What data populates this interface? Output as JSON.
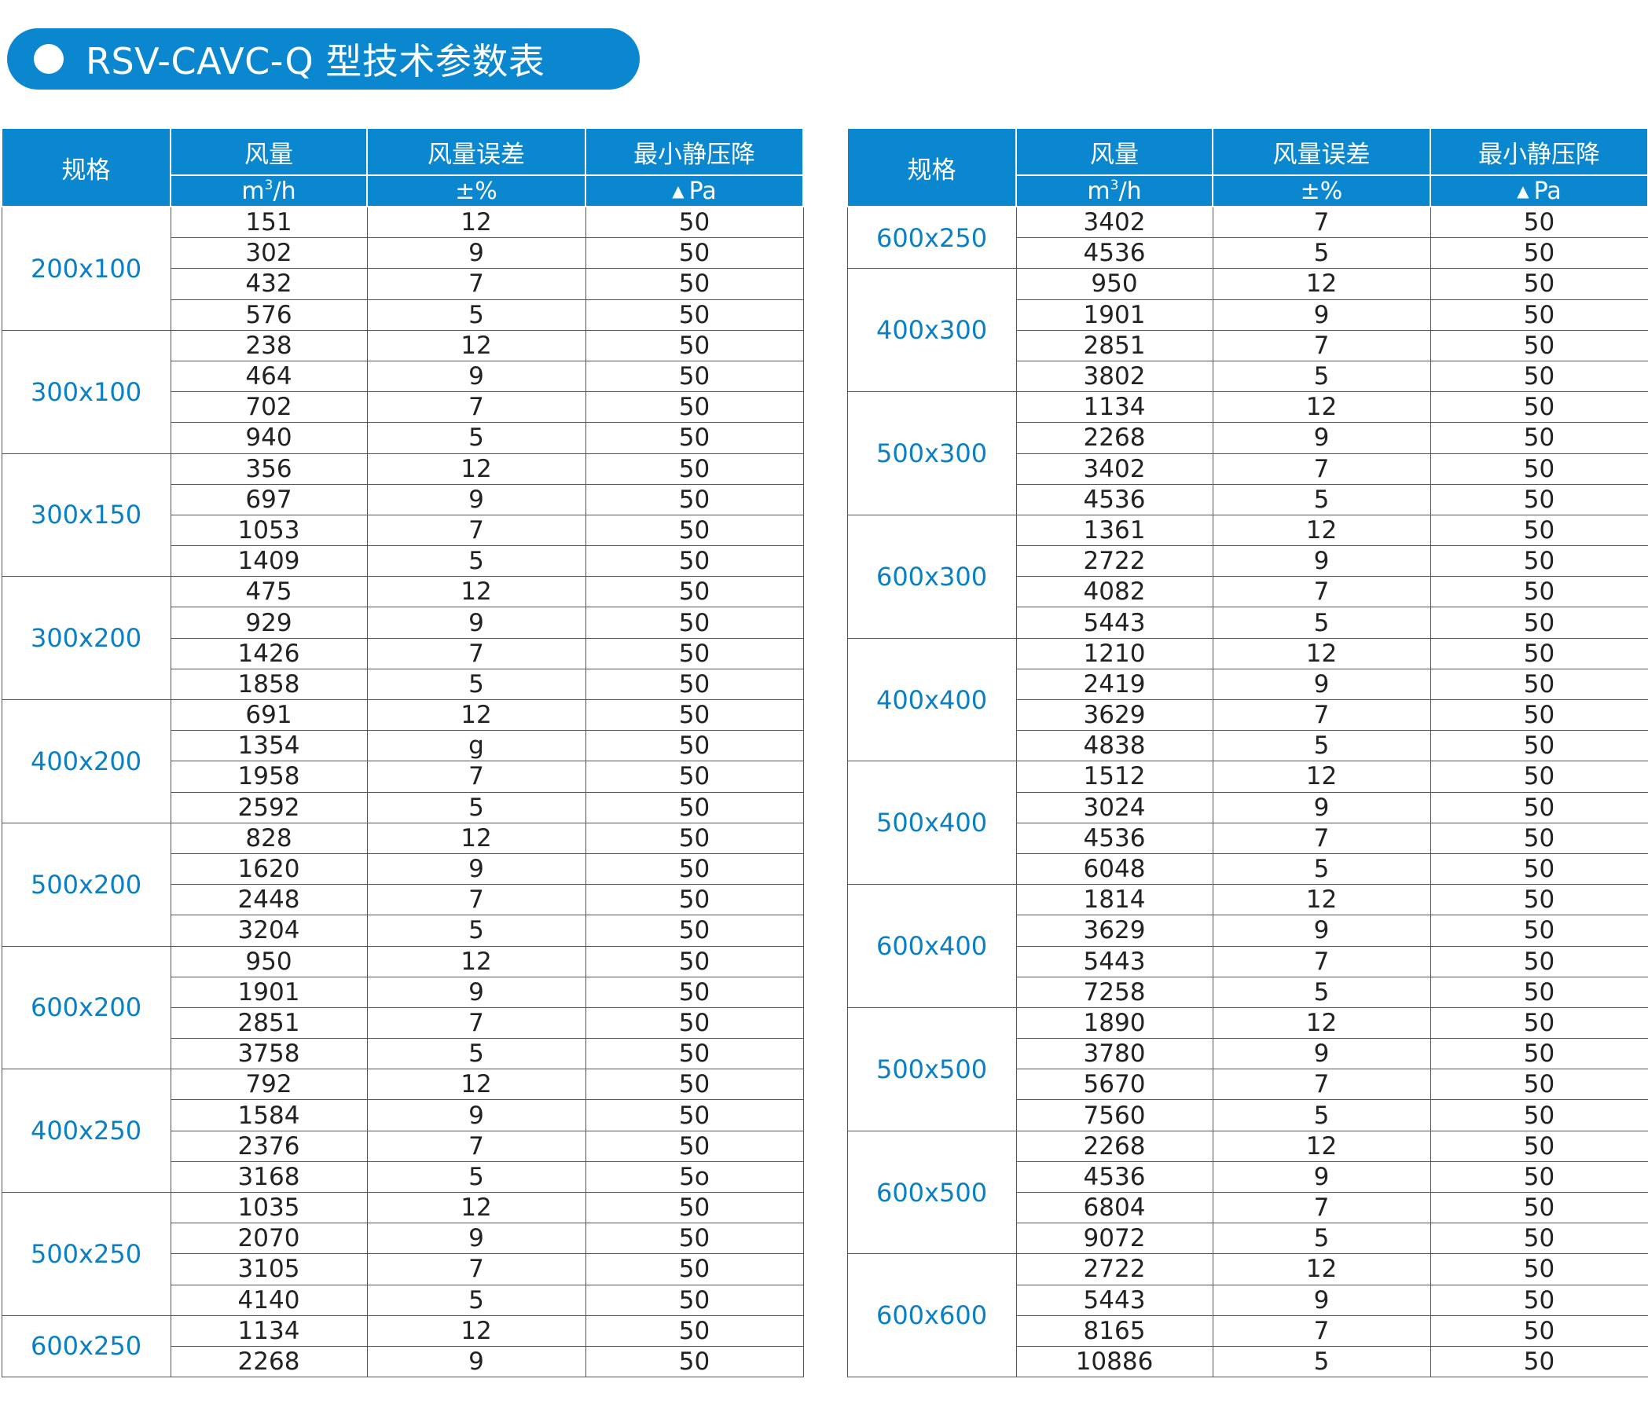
{
  "title": "RSV-CAVC-Q 型技术参数表",
  "header": {
    "spec": "规格",
    "flow": "风量",
    "flow_unit_base": "m",
    "flow_unit_sup": "3",
    "flow_unit_tail": "/h",
    "error": "风量误差",
    "error_unit": "±%",
    "pressure": "最小静压降",
    "pressure_unit_icon": "triangle-up-icon",
    "pressure_unit": "Pa"
  },
  "left_groups": [
    {
      "size": "200x100",
      "rows": [
        [
          "151",
          "12",
          "50"
        ],
        [
          "302",
          "9",
          "50"
        ],
        [
          "432",
          "7",
          "50"
        ],
        [
          "576",
          "5",
          "50"
        ]
      ]
    },
    {
      "size": "300x100",
      "rows": [
        [
          "238",
          "12",
          "50"
        ],
        [
          "464",
          "9",
          "50"
        ],
        [
          "702",
          "7",
          "50"
        ],
        [
          "940",
          "5",
          "50"
        ]
      ]
    },
    {
      "size": "300x150",
      "rows": [
        [
          "356",
          "12",
          "50"
        ],
        [
          "697",
          "9",
          "50"
        ],
        [
          "1053",
          "7",
          "50"
        ],
        [
          "1409",
          "5",
          "50"
        ]
      ]
    },
    {
      "size": "300x200",
      "rows": [
        [
          "475",
          "12",
          "50"
        ],
        [
          "929",
          "9",
          "50"
        ],
        [
          "1426",
          "7",
          "50"
        ],
        [
          "1858",
          "5",
          "50"
        ]
      ]
    },
    {
      "size": "400x200",
      "rows": [
        [
          "691",
          "12",
          "50"
        ],
        [
          "1354",
          "g",
          "50"
        ],
        [
          "1958",
          "7",
          "50"
        ],
        [
          "2592",
          "5",
          "50"
        ]
      ]
    },
    {
      "size": "500x200",
      "rows": [
        [
          "828",
          "12",
          "50"
        ],
        [
          "1620",
          "9",
          "50"
        ],
        [
          "2448",
          "7",
          "50"
        ],
        [
          "3204",
          "5",
          "50"
        ]
      ]
    },
    {
      "size": "600x200",
      "rows": [
        [
          "950",
          "12",
          "50"
        ],
        [
          "1901",
          "9",
          "50"
        ],
        [
          "2851",
          "7",
          "50"
        ],
        [
          "3758",
          "5",
          "50"
        ]
      ]
    },
    {
      "size": "400x250",
      "rows": [
        [
          "792",
          "12",
          "50"
        ],
        [
          "1584",
          "9",
          "50"
        ],
        [
          "2376",
          "7",
          "50"
        ],
        [
          "3168",
          "5",
          "5o"
        ]
      ]
    },
    {
      "size": "500x250",
      "rows": [
        [
          "1035",
          "12",
          "50"
        ],
        [
          "2070",
          "9",
          "50"
        ],
        [
          "3105",
          "7",
          "50"
        ],
        [
          "4140",
          "5",
          "50"
        ]
      ]
    },
    {
      "size": "600x250",
      "rows": [
        [
          "1134",
          "12",
          "50"
        ],
        [
          "2268",
          "9",
          "50"
        ]
      ]
    }
  ],
  "right_groups": [
    {
      "size": "600x250",
      "rows": [
        [
          "3402",
          "7",
          "50"
        ],
        [
          "4536",
          "5",
          "50"
        ]
      ]
    },
    {
      "size": "400x300",
      "rows": [
        [
          "950",
          "12",
          "50"
        ],
        [
          "1901",
          "9",
          "50"
        ],
        [
          "2851",
          "7",
          "50"
        ],
        [
          "3802",
          "5",
          "50"
        ]
      ]
    },
    {
      "size": "500x300",
      "rows": [
        [
          "1134",
          "12",
          "50"
        ],
        [
          "2268",
          "9",
          "50"
        ],
        [
          "3402",
          "7",
          "50"
        ],
        [
          "4536",
          "5",
          "50"
        ]
      ]
    },
    {
      "size": "600x300",
      "rows": [
        [
          "1361",
          "12",
          "50"
        ],
        [
          "2722",
          "9",
          "50"
        ],
        [
          "4082",
          "7",
          "50"
        ],
        [
          "5443",
          "5",
          "50"
        ]
      ]
    },
    {
      "size": "400x400",
      "rows": [
        [
          "1210",
          "12",
          "50"
        ],
        [
          "2419",
          "9",
          "50"
        ],
        [
          "3629",
          "7",
          "50"
        ],
        [
          "4838",
          "5",
          "50"
        ]
      ]
    },
    {
      "size": "500x400",
      "rows": [
        [
          "1512",
          "12",
          "50"
        ],
        [
          "3024",
          "9",
          "50"
        ],
        [
          "4536",
          "7",
          "50"
        ],
        [
          "6048",
          "5",
          "50"
        ]
      ]
    },
    {
      "size": "600x400",
      "rows": [
        [
          "1814",
          "12",
          "50"
        ],
        [
          "3629",
          "9",
          "50"
        ],
        [
          "5443",
          "7",
          "50"
        ],
        [
          "7258",
          "5",
          "50"
        ]
      ]
    },
    {
      "size": "500x500",
      "rows": [
        [
          "1890",
          "12",
          "50"
        ],
        [
          "3780",
          "9",
          "50"
        ],
        [
          "5670",
          "7",
          "50"
        ],
        [
          "7560",
          "5",
          "50"
        ]
      ]
    },
    {
      "size": "600x500",
      "rows": [
        [
          "2268",
          "12",
          "50"
        ],
        [
          "4536",
          "9",
          "50"
        ],
        [
          "6804",
          "7",
          "50"
        ],
        [
          "9072",
          "5",
          "50"
        ]
      ]
    },
    {
      "size": "600x600",
      "rows": [
        [
          "2722",
          "12",
          "50"
        ],
        [
          "5443",
          "9",
          "50"
        ],
        [
          "8165",
          "7",
          "50"
        ],
        [
          "10886",
          "5",
          "50"
        ]
      ]
    }
  ],
  "colors": {
    "accent": "#0b87cf",
    "size_text": "#0b7fc4",
    "grid": "#555555"
  }
}
